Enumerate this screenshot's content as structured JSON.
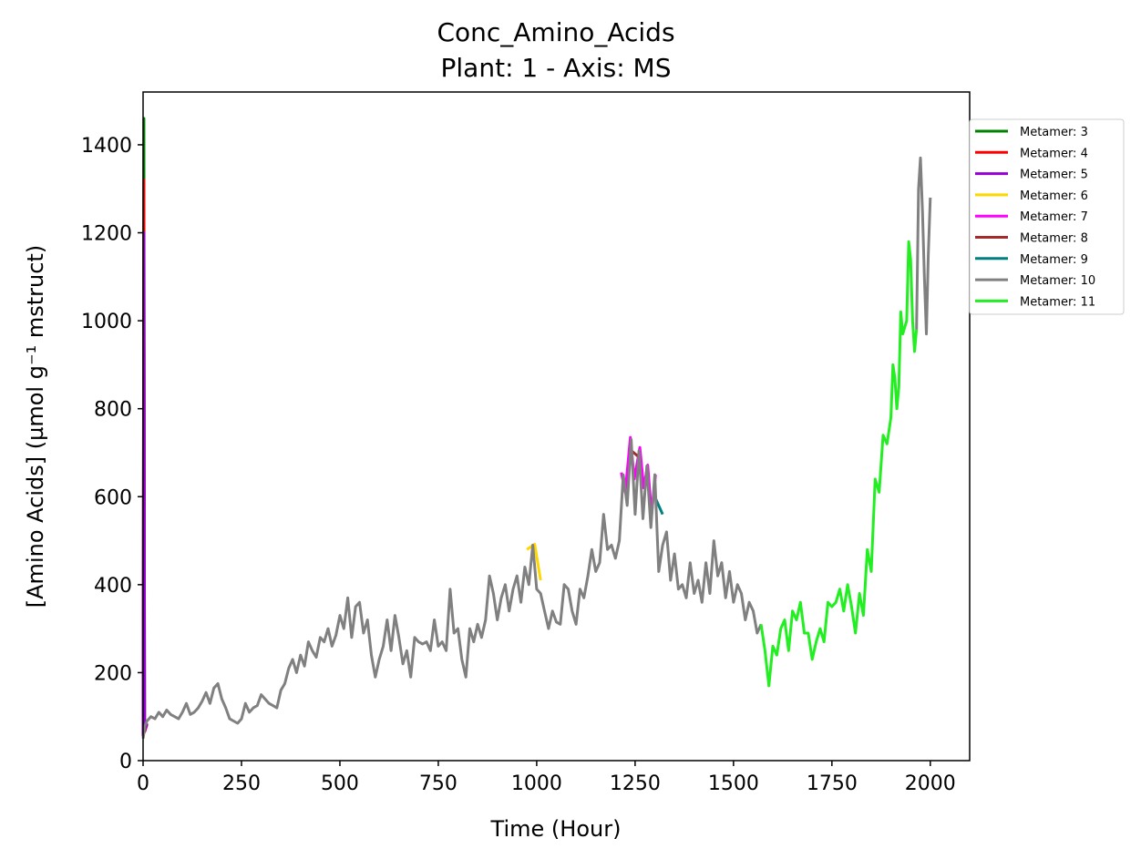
{
  "chart_data": {
    "type": "line",
    "title": "Conc_Amino_Acids",
    "subtitle": "Plant: 1 - Axis: MS",
    "xlabel": "Time (Hour)",
    "ylabel": "[Amino Acids] (µmol g⁻¹ mstruct)",
    "xlim": [
      0,
      2100
    ],
    "ylim": [
      0,
      1520
    ],
    "x_ticks": [
      "0",
      "250",
      "500",
      "750",
      "1000",
      "1250",
      "1500",
      "1750",
      "2000"
    ],
    "y_ticks": [
      "0",
      "200",
      "400",
      "600",
      "800",
      "1000",
      "1200",
      "1400"
    ],
    "grid": false,
    "legend_position": "outside top-right",
    "series": [
      {
        "name": "Metamer: 3",
        "color": "#008000",
        "points": [
          [
            0,
            60
          ],
          [
            2,
            1460
          ],
          [
            4,
            70
          ],
          [
            10,
            85
          ]
        ]
      },
      {
        "name": "Metamer: 4",
        "color": "#ff0000",
        "points": [
          [
            0,
            55
          ],
          [
            2,
            1320
          ],
          [
            4,
            65
          ],
          [
            10,
            82
          ]
        ]
      },
      {
        "name": "Metamer: 5",
        "color": "#9400d3",
        "points": [
          [
            0,
            58
          ],
          [
            2,
            1200
          ],
          [
            4,
            68
          ],
          [
            10,
            84
          ]
        ]
      },
      {
        "name": "Metamer: 6",
        "color": "#ffd700",
        "points": [
          [
            975,
            480
          ],
          [
            995,
            492
          ],
          [
            1010,
            410
          ]
        ]
      },
      {
        "name": "Metamer: 7",
        "color": "#ff00ff",
        "points": [
          [
            1215,
            655
          ],
          [
            1225,
            610
          ],
          [
            1238,
            735
          ],
          [
            1248,
            640
          ],
          [
            1262,
            712
          ],
          [
            1272,
            620
          ],
          [
            1282,
            672
          ],
          [
            1292,
            560
          ],
          [
            1302,
            650
          ]
        ]
      },
      {
        "name": "Metamer: 8",
        "color": "#a52a2a",
        "points": [
          [
            1240,
            705
          ],
          [
            1260,
            690
          ]
        ]
      },
      {
        "name": "Metamer: 9",
        "color": "#008080",
        "points": [
          [
            1300,
            600
          ],
          [
            1320,
            560
          ]
        ]
      },
      {
        "name": "Metamer: 10",
        "color": "#808080",
        "points": [
          [
            0,
            50
          ],
          [
            5,
            80
          ],
          [
            10,
            90
          ],
          [
            20,
            100
          ],
          [
            30,
            95
          ],
          [
            40,
            110
          ],
          [
            50,
            100
          ],
          [
            60,
            115
          ],
          [
            70,
            105
          ],
          [
            80,
            100
          ],
          [
            90,
            95
          ],
          [
            100,
            110
          ],
          [
            110,
            130
          ],
          [
            120,
            105
          ],
          [
            130,
            110
          ],
          [
            140,
            120
          ],
          [
            150,
            135
          ],
          [
            160,
            155
          ],
          [
            170,
            130
          ],
          [
            180,
            165
          ],
          [
            190,
            175
          ],
          [
            200,
            140
          ],
          [
            210,
            120
          ],
          [
            220,
            95
          ],
          [
            230,
            90
          ],
          [
            240,
            85
          ],
          [
            250,
            95
          ],
          [
            260,
            130
          ],
          [
            270,
            110
          ],
          [
            280,
            120
          ],
          [
            290,
            125
          ],
          [
            300,
            150
          ],
          [
            310,
            140
          ],
          [
            320,
            130
          ],
          [
            330,
            125
          ],
          [
            340,
            120
          ],
          [
            350,
            160
          ],
          [
            360,
            175
          ],
          [
            370,
            210
          ],
          [
            380,
            230
          ],
          [
            390,
            200
          ],
          [
            400,
            240
          ],
          [
            410,
            215
          ],
          [
            420,
            270
          ],
          [
            430,
            250
          ],
          [
            440,
            235
          ],
          [
            450,
            280
          ],
          [
            460,
            270
          ],
          [
            470,
            300
          ],
          [
            480,
            260
          ],
          [
            490,
            285
          ],
          [
            500,
            330
          ],
          [
            510,
            300
          ],
          [
            520,
            370
          ],
          [
            530,
            280
          ],
          [
            540,
            350
          ],
          [
            550,
            360
          ],
          [
            560,
            290
          ],
          [
            570,
            320
          ],
          [
            580,
            240
          ],
          [
            590,
            190
          ],
          [
            600,
            230
          ],
          [
            610,
            260
          ],
          [
            620,
            320
          ],
          [
            630,
            250
          ],
          [
            640,
            330
          ],
          [
            650,
            280
          ],
          [
            660,
            220
          ],
          [
            670,
            250
          ],
          [
            680,
            190
          ],
          [
            690,
            280
          ],
          [
            700,
            270
          ],
          [
            710,
            265
          ],
          [
            720,
            270
          ],
          [
            730,
            250
          ],
          [
            740,
            320
          ],
          [
            750,
            260
          ],
          [
            760,
            270
          ],
          [
            770,
            250
          ],
          [
            780,
            390
          ],
          [
            790,
            290
          ],
          [
            800,
            300
          ],
          [
            810,
            230
          ],
          [
            820,
            190
          ],
          [
            830,
            300
          ],
          [
            840,
            270
          ],
          [
            850,
            310
          ],
          [
            860,
            280
          ],
          [
            870,
            320
          ],
          [
            880,
            420
          ],
          [
            890,
            380
          ],
          [
            900,
            320
          ],
          [
            910,
            370
          ],
          [
            920,
            400
          ],
          [
            930,
            340
          ],
          [
            940,
            390
          ],
          [
            950,
            420
          ],
          [
            960,
            360
          ],
          [
            970,
            440
          ],
          [
            980,
            400
          ],
          [
            990,
            490
          ],
          [
            1000,
            390
          ],
          [
            1010,
            380
          ],
          [
            1020,
            340
          ],
          [
            1030,
            300
          ],
          [
            1040,
            340
          ],
          [
            1050,
            315
          ],
          [
            1060,
            310
          ],
          [
            1070,
            400
          ],
          [
            1080,
            390
          ],
          [
            1090,
            340
          ],
          [
            1100,
            310
          ],
          [
            1110,
            390
          ],
          [
            1120,
            370
          ],
          [
            1130,
            420
          ],
          [
            1140,
            480
          ],
          [
            1150,
            430
          ],
          [
            1160,
            450
          ],
          [
            1170,
            560
          ],
          [
            1180,
            480
          ],
          [
            1190,
            490
          ],
          [
            1200,
            460
          ],
          [
            1210,
            500
          ],
          [
            1220,
            650
          ],
          [
            1230,
            580
          ],
          [
            1240,
            730
          ],
          [
            1250,
            560
          ],
          [
            1260,
            705
          ],
          [
            1270,
            550
          ],
          [
            1280,
            670
          ],
          [
            1290,
            530
          ],
          [
            1300,
            650
          ],
          [
            1310,
            430
          ],
          [
            1320,
            490
          ],
          [
            1330,
            520
          ],
          [
            1340,
            410
          ],
          [
            1350,
            470
          ],
          [
            1360,
            390
          ],
          [
            1370,
            400
          ],
          [
            1380,
            370
          ],
          [
            1390,
            450
          ],
          [
            1400,
            380
          ],
          [
            1410,
            410
          ],
          [
            1420,
            360
          ],
          [
            1430,
            450
          ],
          [
            1440,
            380
          ],
          [
            1450,
            500
          ],
          [
            1460,
            420
          ],
          [
            1470,
            450
          ],
          [
            1480,
            370
          ],
          [
            1490,
            430
          ],
          [
            1500,
            360
          ],
          [
            1510,
            400
          ],
          [
            1520,
            380
          ],
          [
            1530,
            320
          ],
          [
            1540,
            360
          ],
          [
            1550,
            340
          ],
          [
            1560,
            290
          ],
          [
            1570,
            310
          ]
        ]
      },
      {
        "name": "Metamer: 11",
        "color": "#22ee22",
        "points": [
          [
            1570,
            310
          ],
          [
            1580,
            250
          ],
          [
            1590,
            170
          ],
          [
            1600,
            260
          ],
          [
            1610,
            240
          ],
          [
            1620,
            300
          ],
          [
            1630,
            320
          ],
          [
            1640,
            250
          ],
          [
            1650,
            340
          ],
          [
            1660,
            320
          ],
          [
            1670,
            360
          ],
          [
            1680,
            290
          ],
          [
            1690,
            290
          ],
          [
            1700,
            230
          ],
          [
            1710,
            270
          ],
          [
            1720,
            300
          ],
          [
            1730,
            270
          ],
          [
            1740,
            360
          ],
          [
            1750,
            350
          ],
          [
            1760,
            360
          ],
          [
            1770,
            390
          ],
          [
            1780,
            340
          ],
          [
            1790,
            400
          ],
          [
            1800,
            350
          ],
          [
            1810,
            290
          ],
          [
            1820,
            380
          ],
          [
            1830,
            330
          ],
          [
            1840,
            480
          ],
          [
            1850,
            430
          ],
          [
            1860,
            640
          ],
          [
            1870,
            610
          ],
          [
            1880,
            740
          ],
          [
            1890,
            720
          ],
          [
            1900,
            780
          ],
          [
            1905,
            900
          ],
          [
            1910,
            870
          ],
          [
            1915,
            800
          ],
          [
            1920,
            850
          ],
          [
            1925,
            1020
          ],
          [
            1930,
            970
          ],
          [
            1940,
            1000
          ],
          [
            1945,
            1180
          ],
          [
            1950,
            1140
          ],
          [
            1955,
            1000
          ],
          [
            1960,
            930
          ],
          [
            1965,
            980
          ]
        ]
      },
      {
        "name": "Metamer: 10",
        "color": "#808080",
        "points": [
          [
            1965,
            980
          ],
          [
            1970,
            1300
          ],
          [
            1975,
            1370
          ],
          [
            1980,
            1250
          ],
          [
            1985,
            1100
          ],
          [
            1990,
            970
          ],
          [
            1995,
            1150
          ],
          [
            2000,
            1280
          ]
        ]
      }
    ],
    "legend": [
      {
        "label": "Metamer: 3",
        "color": "#008000"
      },
      {
        "label": "Metamer: 4",
        "color": "#ff0000"
      },
      {
        "label": "Metamer: 5",
        "color": "#9400d3"
      },
      {
        "label": "Metamer: 6",
        "color": "#ffd700"
      },
      {
        "label": "Metamer: 7",
        "color": "#ff00ff"
      },
      {
        "label": "Metamer: 8",
        "color": "#a52a2a"
      },
      {
        "label": "Metamer: 9",
        "color": "#008080"
      },
      {
        "label": "Metamer: 10",
        "color": "#808080"
      },
      {
        "label": "Metamer: 11",
        "color": "#22ee22"
      }
    ]
  }
}
